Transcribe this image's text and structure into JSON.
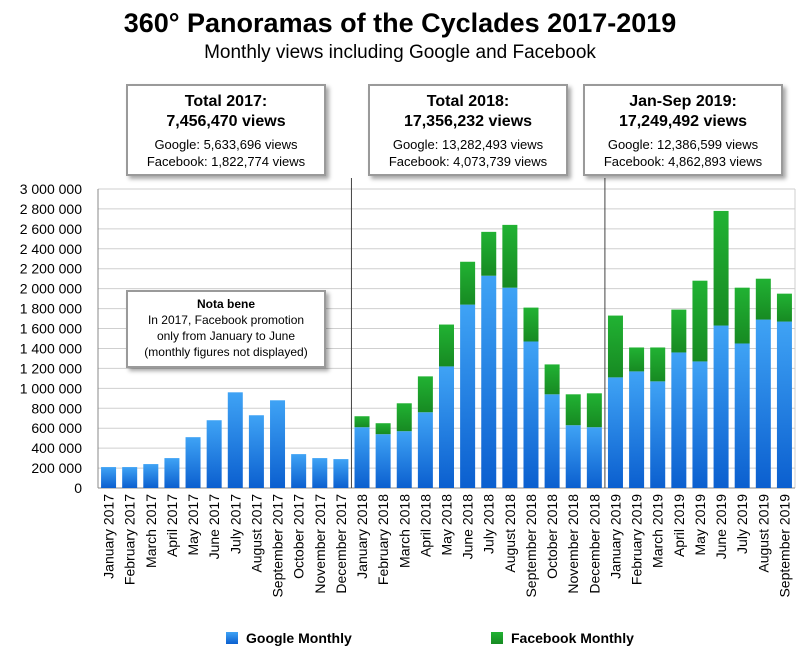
{
  "chart_data": {
    "type": "bar",
    "stacked": true,
    "title": "360° Panoramas of the Cyclades 2017-2019",
    "subtitle": "Monthly views including Google and Facebook",
    "ylim": [
      0,
      3000000
    ],
    "yticks": [
      "0",
      "200 000",
      "400 000",
      "600 000",
      "800 000",
      "1 000 000",
      "1 200 000",
      "1 400 000",
      "1 600 000",
      "1 800 000",
      "2 000 000",
      "2 200 000",
      "2 400 000",
      "2 600 000",
      "2 800 000",
      "3 000 000"
    ],
    "grid": true,
    "categories": [
      "January 2017",
      "February 2017",
      "March 2017",
      "April 2017",
      "May 2017",
      "June 2017",
      "July 2017",
      "August 2017",
      "September 2017",
      "October 2017",
      "November 2017",
      "December 2017",
      "January 2018",
      "February 2018",
      "March 2018",
      "April 2018",
      "May 2018",
      "June 2018",
      "July 2018",
      "August 2018",
      "September 2018",
      "October 2018",
      "November 2018",
      "December 2018",
      "January 2019",
      "February 2019",
      "March 2019",
      "April 2019",
      "May 2019",
      "June 2019",
      "July 2019",
      "August 2019",
      "September 2019"
    ],
    "series": [
      {
        "name": "Google Monthly",
        "color": "#1a78e0",
        "values": [
          210000,
          210000,
          240000,
          300000,
          510000,
          680000,
          960000,
          730000,
          880000,
          340000,
          300000,
          290000,
          610000,
          540000,
          570000,
          760000,
          1220000,
          1840000,
          2130000,
          2010000,
          1470000,
          940000,
          630000,
          610000,
          1110000,
          1170000,
          1070000,
          1360000,
          1270000,
          1630000,
          1450000,
          1690000,
          1670000
        ]
      },
      {
        "name": "Facebook Monthly",
        "color": "#1fa52e",
        "values": [
          0,
          0,
          0,
          0,
          0,
          0,
          0,
          0,
          0,
          0,
          0,
          0,
          110000,
          110000,
          280000,
          360000,
          420000,
          430000,
          440000,
          630000,
          340000,
          300000,
          310000,
          340000,
          620000,
          240000,
          340000,
          430000,
          810000,
          1150000,
          560000,
          410000,
          280000
        ]
      }
    ],
    "legend_position": "bottom"
  },
  "boxes": [
    {
      "line1": "Total 2017:",
      "line2": "7,456,470 views",
      "google": "Google: 5,633,696 views",
      "facebook": "Facebook: 1,822,774 views"
    },
    {
      "line1": "Total 2018:",
      "line2": "17,356,232 views",
      "google": "Google: 13,282,493 views",
      "facebook": "Facebook: 4,073,739 views"
    },
    {
      "line1": "Jan-Sep 2019:",
      "line2": "17,249,492 views",
      "google": "Google: 12,386,599 views",
      "facebook": "Facebook: 4,862,893 views"
    }
  ],
  "nota": {
    "heading": "Nota bene",
    "line1": "In 2017, Facebook promotion",
    "line2": "only from January to June",
    "line3": "(monthly figures not displayed)"
  },
  "legend": {
    "google": "Google Monthly",
    "facebook": "Facebook Monthly"
  }
}
